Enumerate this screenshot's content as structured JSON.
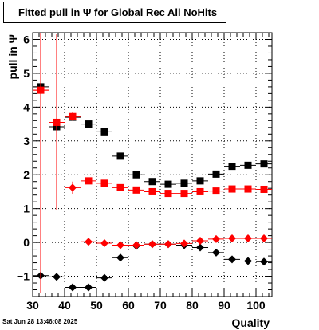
{
  "title": "Fitted pull in  Ψ  for Global Rec All NoHits",
  "timestamp": "Sat Jun 28 13:46:08 2025",
  "chart_data": {
    "type": "scatter",
    "title": "Fitted pull in  Ψ  for Global Rec All NoHits",
    "xlabel": "Quality",
    "ylabel": "pull in  Ψ",
    "xlim": [
      30,
      105
    ],
    "ylim": [
      -1.6,
      6.2
    ],
    "grid": true,
    "x_ticks": [
      30,
      40,
      50,
      60,
      70,
      80,
      90,
      100
    ],
    "y_ticks": [
      -1,
      0,
      1,
      2,
      3,
      4,
      5,
      6
    ],
    "series": [
      {
        "marker": "square",
        "color": "#000000",
        "x": [
          32.5,
          37.5,
          42.5,
          47.5,
          52.5,
          57.5,
          62.5,
          67.5,
          72.5,
          77.5,
          82.5,
          87.5,
          92.5,
          97.5,
          102.5
        ],
        "y": [
          4.6,
          3.42,
          3.7,
          3.5,
          3.27,
          2.55,
          2.0,
          1.8,
          1.72,
          1.75,
          1.82,
          2.02,
          2.25,
          2.28,
          2.32
        ],
        "yerr": [
          0.15,
          0.1,
          0.08,
          0.06,
          0.06,
          0.06,
          0.05,
          0.05,
          0.05,
          0.05,
          0.05,
          0.05,
          0.05,
          0.05,
          0.05
        ]
      },
      {
        "marker": "square",
        "color": "#ff0000",
        "x": [
          32.5,
          37.5,
          42.5,
          47.5,
          52.5,
          57.5,
          62.5,
          67.5,
          72.5,
          77.5,
          82.5,
          87.5,
          92.5,
          97.5,
          102.5
        ],
        "y": [
          4.5,
          3.55,
          3.72,
          1.82,
          1.75,
          1.62,
          1.55,
          1.5,
          1.45,
          1.45,
          1.5,
          1.52,
          1.58,
          1.58,
          1.57
        ],
        "yerr": [
          0.2,
          0.15,
          0.12,
          0.06,
          0.06,
          0.06,
          0.05,
          0.05,
          0.05,
          0.05,
          0.05,
          0.05,
          0.05,
          0.05,
          0.05
        ]
      },
      {
        "marker": "diamond",
        "color": "#000000",
        "x": [
          32.5,
          37.5,
          42.5,
          47.5,
          52.5,
          57.5,
          62.5,
          67.5,
          72.5,
          77.5,
          82.5,
          87.5,
          92.5,
          97.5,
          102.5
        ],
        "y": [
          -0.98,
          -1.02,
          -1.33,
          -1.33,
          -1.05,
          -0.45,
          -0.1,
          -0.05,
          -0.05,
          -0.08,
          -0.15,
          -0.3,
          -0.5,
          -0.55,
          -0.57
        ],
        "yerr": [
          0.15,
          0.12,
          0.08,
          0.06,
          0.06,
          0.05,
          0.05,
          0.05,
          0.05,
          0.05,
          0.05,
          0.05,
          0.05,
          0.05,
          0.05
        ]
      },
      {
        "marker": "diamond",
        "color": "#ff0000",
        "x": [
          32.5,
          37.5,
          42.5,
          47.5,
          52.5,
          57.5,
          62.5,
          67.5,
          72.5,
          77.5,
          82.5,
          87.5,
          92.5,
          97.5,
          102.5
        ],
        "y": [
          4.5,
          3.55,
          1.62,
          0.02,
          -0.02,
          -0.08,
          -0.08,
          -0.05,
          -0.05,
          -0.03,
          0.05,
          0.1,
          0.12,
          0.12,
          0.12
        ],
        "yerr": [
          6.0,
          2.6,
          0.18,
          0.05,
          0.05,
          0.05,
          0.05,
          0.05,
          0.05,
          0.05,
          0.05,
          0.05,
          0.05,
          0.05,
          0.05
        ]
      }
    ]
  }
}
